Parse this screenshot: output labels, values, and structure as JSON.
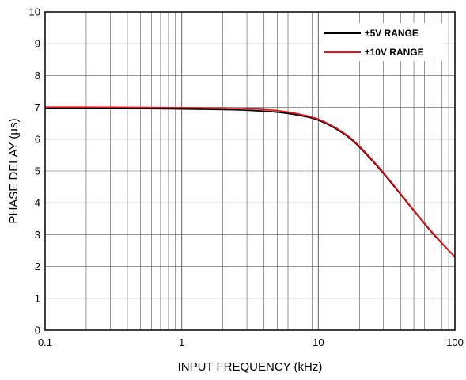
{
  "chart_data": {
    "type": "line",
    "xlabel": "INPUT FREQUENCY (kHz)",
    "ylabel": "PHASE DELAY (µs)",
    "xscale": "log",
    "xlim": [
      0.1,
      100
    ],
    "ylim": [
      0,
      10
    ],
    "x_ticks": [
      0.1,
      1,
      10,
      100
    ],
    "x_tick_labels": [
      "0.1",
      "1",
      "10",
      "100"
    ],
    "y_ticks": [
      0,
      1,
      2,
      3,
      4,
      5,
      6,
      7,
      8,
      9,
      10
    ],
    "y_tick_labels": [
      "0",
      "1",
      "2",
      "3",
      "4",
      "5",
      "6",
      "7",
      "8",
      "9",
      "10"
    ],
    "grid": true,
    "legend_position": "top-right",
    "series": [
      {
        "name": "±5V RANGE",
        "color": "#000000",
        "x": [
          0.1,
          0.2,
          0.5,
          1,
          2,
          3,
          5,
          7,
          10,
          15,
          20,
          30,
          50,
          70,
          100
        ],
        "y": [
          6.96,
          6.96,
          6.96,
          6.95,
          6.93,
          6.91,
          6.85,
          6.76,
          6.6,
          6.2,
          5.75,
          4.92,
          3.75,
          3.0,
          2.3
        ]
      },
      {
        "name": "±10V RANGE",
        "color": "#e8101a",
        "x": [
          0.1,
          0.2,
          0.5,
          1,
          2,
          3,
          5,
          7,
          10,
          15,
          20,
          30,
          50,
          70,
          100
        ],
        "y": [
          7.01,
          7.01,
          7.0,
          6.99,
          6.98,
          6.96,
          6.9,
          6.8,
          6.63,
          6.23,
          5.78,
          4.95,
          3.77,
          3.02,
          2.3
        ]
      }
    ]
  }
}
